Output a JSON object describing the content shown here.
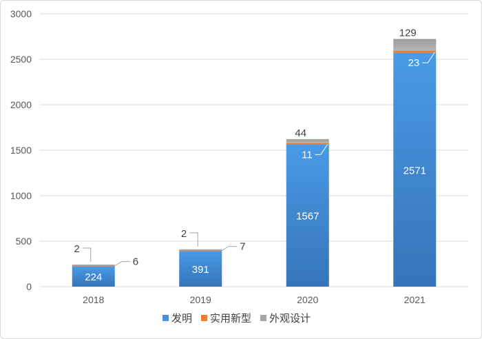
{
  "chart_data": {
    "type": "bar",
    "stacked": true,
    "categories": [
      "2018",
      "2019",
      "2020",
      "2021"
    ],
    "series": [
      {
        "name": "发明",
        "values": [
          224,
          391,
          1567,
          2571
        ],
        "color": "#4a90d9"
      },
      {
        "name": "实用新型",
        "values": [
          6,
          7,
          11,
          23
        ],
        "color": "#ed7d31"
      },
      {
        "name": "外观设计",
        "values": [
          2,
          2,
          44,
          129
        ],
        "color": "#a5a5a5"
      }
    ],
    "ylim": [
      0,
      3000
    ],
    "yticks": [
      0,
      500,
      1000,
      1500,
      2000,
      2500,
      3000
    ],
    "grid": true,
    "legend": "bottom",
    "label_color_inside": "#ffffff",
    "label_color_outside": "#404040"
  }
}
